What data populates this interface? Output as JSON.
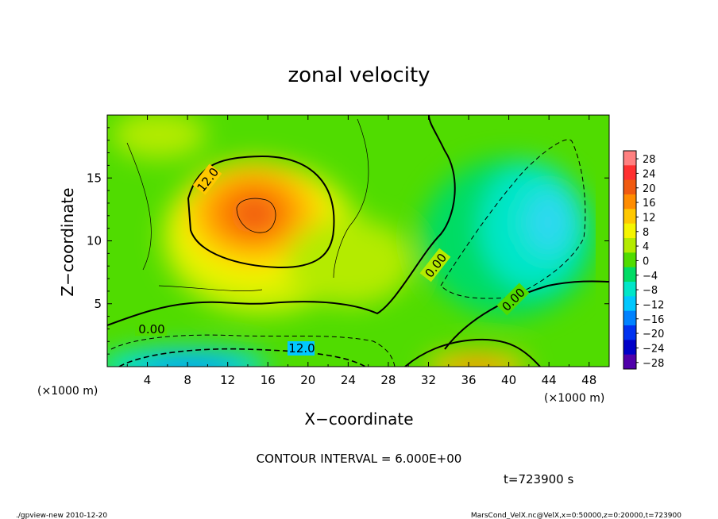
{
  "chart_data": {
    "type": "heatmap",
    "title": "zonal velocity",
    "xlabel": "X−coordinate",
    "ylabel": "Z−coordinate",
    "x_unit": "(×1000 m)",
    "y_unit": "(×1000 m)",
    "xlim": [
      0,
      50
    ],
    "ylim": [
      0,
      20
    ],
    "x_ticks": [
      4,
      8,
      12,
      16,
      20,
      24,
      28,
      32,
      36,
      40,
      44,
      48
    ],
    "y_ticks": [
      5,
      10,
      15
    ],
    "colorbar": {
      "levels": [
        "28",
        "24",
        "20",
        "16",
        "12",
        "8",
        "4",
        "0",
        "−4",
        "−8",
        "−12",
        "−16",
        "−20",
        "−24",
        "−28"
      ],
      "colors": [
        "#ff8080",
        "#ff3030",
        "#f05a10",
        "#ff8c00",
        "#ffc800",
        "#f5f500",
        "#b4eb00",
        "#50dc00",
        "#00dc64",
        "#00e6c8",
        "#00c8ff",
        "#0082ff",
        "#0032f0",
        "#0000c8",
        "#5000aa"
      ]
    },
    "contour_interval_text": "CONTOUR INTERVAL = 6.000E+00",
    "contour_labels": [
      "12.0",
      "0.00",
      "0.00",
      "0.00",
      "12.0"
    ],
    "features": [
      {
        "kind": "positive-max",
        "x": 14.5,
        "z": 12.3,
        "value": 20
      },
      {
        "kind": "negative-min",
        "x": 15,
        "z": 0.5,
        "value": -18
      },
      {
        "kind": "positive-max",
        "x": 38.5,
        "z": 0.5,
        "value": 16
      },
      {
        "kind": "negative-min",
        "x": 42,
        "z": 12,
        "value": -9
      }
    ],
    "time_text": "t=723900 s"
  },
  "footer": {
    "left": "./gpview-new   2010-12-20",
    "right": "MarsCond_VelX.nc@VelX,x=0:50000,z=0:20000,t=723900"
  }
}
